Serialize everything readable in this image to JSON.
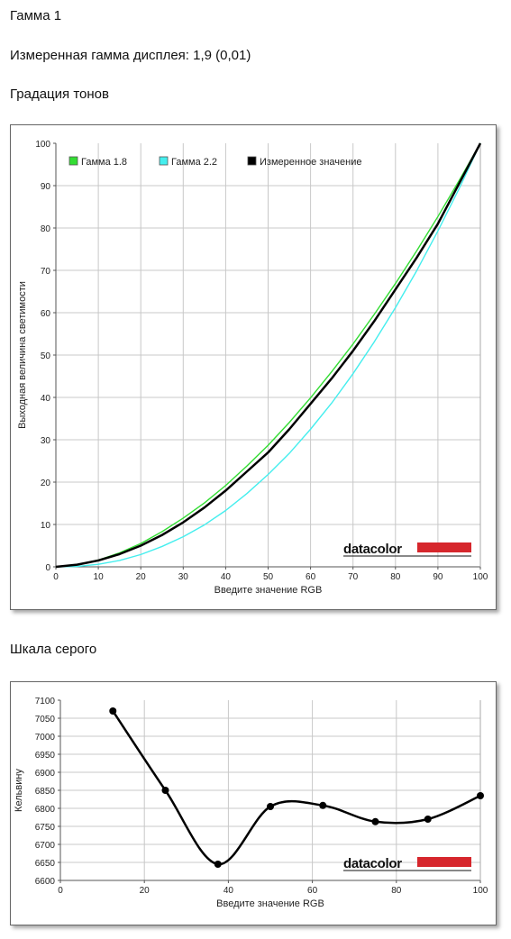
{
  "headings": {
    "title": "Гамма 1",
    "measured": "Измеренная гамма дисплея: 1,9 (0,01)",
    "tone_section": "Градация тонов",
    "gray_section": "Шкала серого"
  },
  "logo_text": "datacolor",
  "colors": {
    "gamma18": "#33dd33",
    "gamma22": "#44eeee",
    "measured": "#000000",
    "logo_bar": "#d6262c",
    "grid": "#c8c8c8"
  },
  "chart_data": [
    {
      "type": "line",
      "xlabel": "Введите значение RGB",
      "ylabel": "Выходная величина светимости",
      "xlim": [
        0,
        100
      ],
      "ylim": [
        0,
        100
      ],
      "xticks": [
        0,
        10,
        20,
        30,
        40,
        50,
        60,
        70,
        80,
        90,
        100
      ],
      "yticks": [
        0,
        10,
        20,
        30,
        40,
        50,
        60,
        70,
        80,
        90,
        100
      ],
      "grid": true,
      "legend_position": "top-left",
      "series": [
        {
          "name": "Гамма 1.8",
          "color": "#33dd33",
          "x": [
            0,
            5,
            10,
            15,
            20,
            25,
            30,
            35,
            40,
            45,
            50,
            55,
            60,
            65,
            70,
            75,
            80,
            85,
            90,
            95,
            100
          ],
          "y": [
            0,
            0.5,
            1.6,
            3.3,
            5.5,
            8.3,
            11.5,
            15.1,
            19.2,
            23.8,
            28.7,
            34.1,
            39.9,
            46.1,
            52.6,
            59.6,
            66.9,
            74.6,
            82.7,
            91.2,
            100
          ]
        },
        {
          "name": "Гамма 2.2",
          "color": "#44eeee",
          "x": [
            0,
            5,
            10,
            15,
            20,
            25,
            30,
            35,
            40,
            45,
            50,
            55,
            60,
            65,
            70,
            75,
            80,
            85,
            90,
            95,
            100
          ],
          "y": [
            0,
            0.1,
            0.6,
            1.5,
            2.9,
            4.8,
            7.1,
            9.9,
            13.3,
            17.3,
            21.8,
            26.8,
            32.5,
            38.7,
            45.6,
            53.1,
            61.2,
            69.9,
            79.3,
            89.3,
            100
          ]
        },
        {
          "name": "Измеренное значение",
          "color": "#000000",
          "x": [
            0,
            5,
            10,
            15,
            20,
            25,
            30,
            35,
            40,
            45,
            50,
            55,
            60,
            65,
            70,
            75,
            80,
            85,
            90,
            95,
            100
          ],
          "y": [
            0,
            0.5,
            1.5,
            3.0,
            5.0,
            7.5,
            10.5,
            14.0,
            18.0,
            22.5,
            27.0,
            32.5,
            38.5,
            44.5,
            51.0,
            58.0,
            65.5,
            73.0,
            81.0,
            90.5,
            100
          ]
        }
      ]
    },
    {
      "type": "line",
      "xlabel": "Введите значение RGB",
      "ylabel": "Кельвину",
      "xlim": [
        0,
        100
      ],
      "ylim": [
        6600,
        7100
      ],
      "xticks": [
        0,
        20,
        40,
        60,
        80,
        100
      ],
      "yticks": [
        6600,
        6650,
        6700,
        6750,
        6800,
        6850,
        6900,
        6950,
        7000,
        7050,
        7100
      ],
      "grid": true,
      "series": [
        {
          "name": "",
          "color": "#000000",
          "smooth": true,
          "x": [
            12.5,
            25,
            37.5,
            50,
            62.5,
            75,
            87.5,
            100
          ],
          "y": [
            7070,
            6850,
            6645,
            6805,
            6808,
            6763,
            6770,
            6835
          ]
        }
      ]
    }
  ]
}
